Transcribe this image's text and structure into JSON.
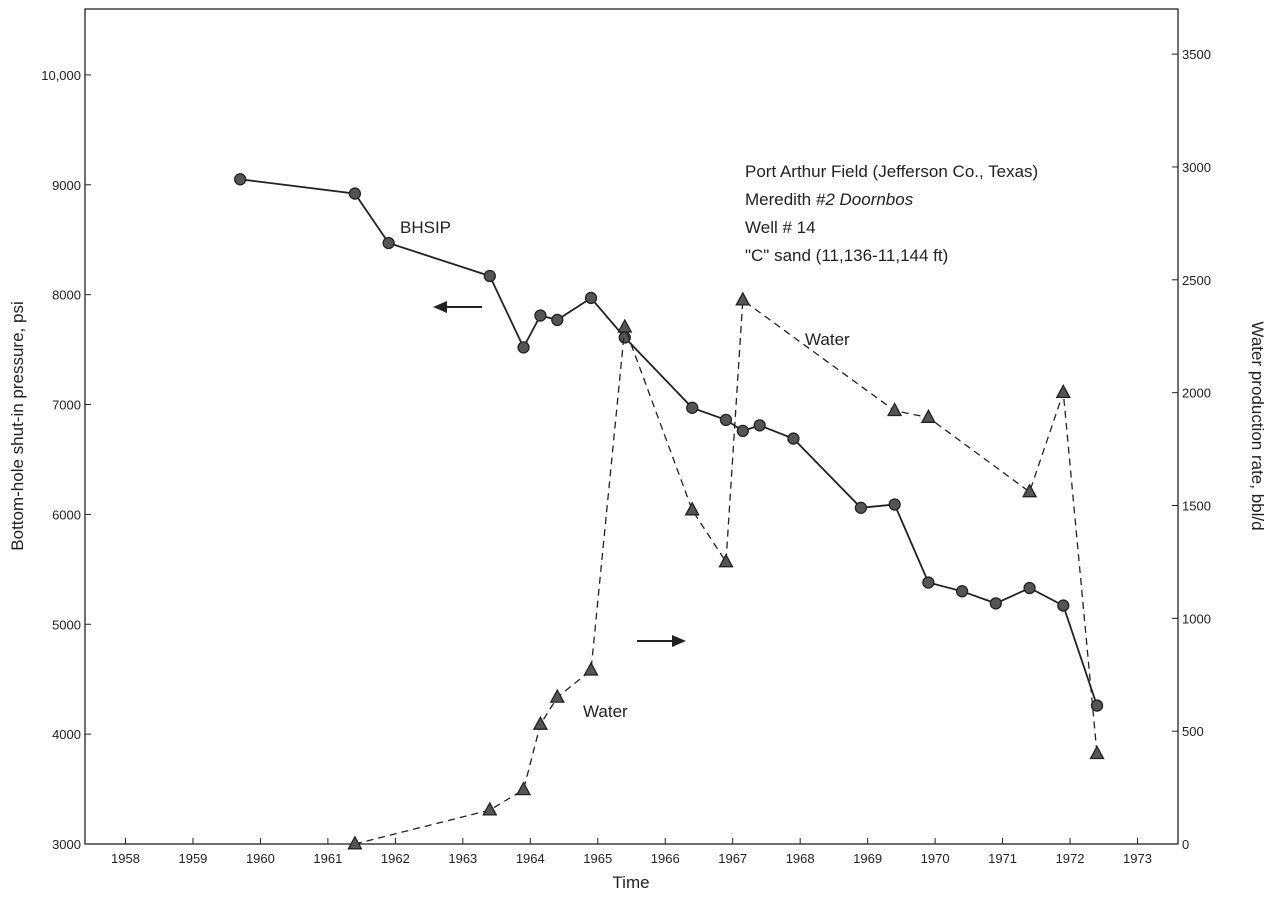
{
  "chart_data": {
    "type": "line",
    "xlabel": "Time",
    "ylabel_left": "Bottom-hole shut-in pressure, psi",
    "ylabel_right": "Water production rate, bbl/d",
    "x_ticks": [
      "1958",
      "1959",
      "1960",
      "1961",
      "1962",
      "1963",
      "1964",
      "1965",
      "1966",
      "1967",
      "1968",
      "1969",
      "1970",
      "1971",
      "1972",
      "1973"
    ],
    "xlim": [
      1957.4,
      1973.6
    ],
    "ylim_left": [
      3000,
      10600
    ],
    "ylim_right": [
      0,
      3700
    ],
    "left_ticks": [
      {
        "value": 3000,
        "label": "3000"
      },
      {
        "value": 4000,
        "label": "4000"
      },
      {
        "value": 5000,
        "label": "5000"
      },
      {
        "value": 6000,
        "label": "6000"
      },
      {
        "value": 7000,
        "label": "7000"
      },
      {
        "value": 8000,
        "label": "8000"
      },
      {
        "value": 9000,
        "label": "9000"
      },
      {
        "value": 10000,
        "label": "10,000"
      }
    ],
    "right_ticks": [
      {
        "value": 0,
        "label": "0"
      },
      {
        "value": 500,
        "label": "500"
      },
      {
        "value": 1000,
        "label": "1000"
      },
      {
        "value": 1500,
        "label": "1500"
      },
      {
        "value": 2000,
        "label": "2000"
      },
      {
        "value": 2500,
        "label": "2500"
      },
      {
        "value": 3000,
        "label": "3000"
      },
      {
        "value": 3500,
        "label": "3500"
      }
    ],
    "series": [
      {
        "name": "BHSIP",
        "axis": "left",
        "style": "solid",
        "marker": "circle",
        "x": [
          1959.7,
          1961.4,
          1961.9,
          1963.4,
          1963.9,
          1964.15,
          1964.4,
          1964.9,
          1965.4,
          1966.4,
          1966.9,
          1967.15,
          1967.4,
          1967.9,
          1968.9,
          1969.4,
          1969.9,
          1970.4,
          1970.9,
          1971.4,
          1971.9,
          1972.4
        ],
        "y": [
          9050,
          8920,
          8470,
          8170,
          7520,
          7810,
          7770,
          7970,
          7610,
          6970,
          6860,
          6760,
          6810,
          6690,
          6060,
          6090,
          5380,
          5300,
          5190,
          5330,
          5170,
          4260
        ]
      },
      {
        "name": "Water",
        "axis": "right",
        "style": "dashed",
        "marker": "triangle",
        "x": [
          1961.4,
          1963.4,
          1963.9,
          1964.15,
          1964.4,
          1964.9,
          1965.4,
          1966.4,
          1966.9,
          1967.15,
          1969.4,
          1969.9,
          1971.4,
          1971.9,
          1972.4
        ],
        "y": [
          0,
          150,
          240,
          530,
          650,
          770,
          2290,
          1480,
          1250,
          2410,
          1920,
          1890,
          1560,
          2000,
          400
        ]
      }
    ]
  },
  "labels": {
    "bhsip": "BHSIP",
    "water_upper": "Water",
    "water_lower": "Water"
  },
  "info": {
    "line1": "Port Arthur Field (Jefferson Co., Texas)",
    "line2_prefix": "Meredith ",
    "line2_italic": "#2 Doornbos",
    "line3": "Well # 14",
    "line4": "\"C\" sand (11,136-11,144 ft)"
  },
  "colors": {
    "ink": "#222222",
    "marker_fill": "#555555"
  }
}
